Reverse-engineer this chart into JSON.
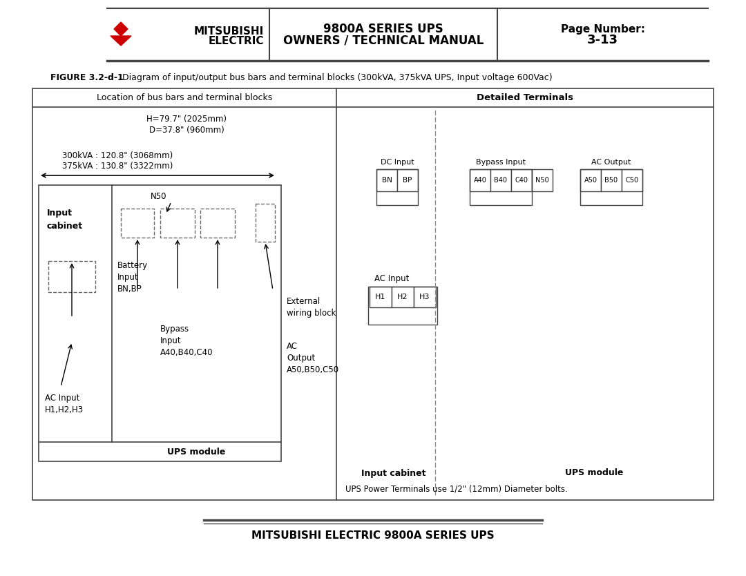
{
  "figure_label": "FIGURE 3.2-d-1",
  "figure_caption": "   Diagram of input/output bus bars and terminal blocks (300kVA, 375kVA UPS, Input voltage 600Vac)",
  "left_panel_title": "Location of bus bars and terminal blocks",
  "right_panel_title": "Detailed Terminals",
  "h_dim": "H=79.7\" (2025mm)",
  "d_dim": "D=37.8\" (960mm)",
  "kva_300": "300kVA : 120.8\" (3068mm)",
  "kva_375": "375kVA : 130.8\" (3322mm)",
  "input_cabinet_label": "Input\ncabinet",
  "n50_label": "N50",
  "battery_label": "Battery\nInput\nBN,BP",
  "external_label": "External\nwiring block",
  "ac_output_label": "AC\nOutput\nA50,B50,C50",
  "bypass_label": "Bypass\nInput\nA40,B40,C40",
  "ac_input_label": "AC Input\nH1,H2,H3",
  "ups_module_label": "UPS module",
  "dc_input_label": "DC Input",
  "bypass_input_label": "Bypass Input",
  "ac_output_right_label": "AC Output",
  "bn_bp_labels": [
    "BN",
    "BP"
  ],
  "bypass_input_labels": [
    "A40",
    "B40",
    "C40"
  ],
  "n50_label_right": "N50",
  "ac_output_labels": [
    "A50",
    "B50",
    "C50"
  ],
  "ac_input_right_label": "AC Input",
  "h_labels": [
    "H1",
    "H2",
    "H3"
  ],
  "input_cabinet_right": "Input cabinet",
  "ups_module_right": "UPS module",
  "power_terminals_note": "UPS Power Terminals use 1/2\" (12mm) Diameter bolts.",
  "footer": "MITSUBISHI ELECTRIC 9800A SERIES UPS",
  "header_title1": "9800A SERIES UPS",
  "header_title2": "OWNERS / TECHNICAL MANUAL",
  "header_mits": "MITSUBISHI",
  "header_elec": "ELECTRIC",
  "header_page_label": "Page Number:",
  "header_page_num": "3-13",
  "bg_color": "#ffffff",
  "text_color": "#000000",
  "red_color": "#cc0000",
  "gray_line": "#444444"
}
